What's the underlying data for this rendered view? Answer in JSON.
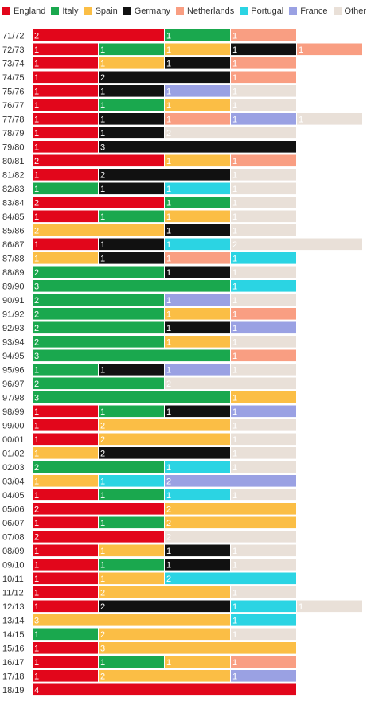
{
  "chart_data": {
    "type": "bar",
    "stacked": true,
    "title": "",
    "xlabel": "",
    "ylabel": "",
    "legend_position": "top",
    "categories": [
      "71/72",
      "72/73",
      "73/74",
      "74/75",
      "75/76",
      "76/77",
      "77/78",
      "78/79",
      "79/80",
      "80/81",
      "81/82",
      "82/83",
      "83/84",
      "84/85",
      "85/86",
      "86/87",
      "87/88",
      "88/89",
      "89/90",
      "90/91",
      "91/92",
      "92/93",
      "93/94",
      "94/95",
      "95/96",
      "96/97",
      "97/98",
      "98/99",
      "99/00",
      "00/01",
      "01/02",
      "02/03",
      "03/04",
      "04/05",
      "05/06",
      "06/07",
      "07/08",
      "08/09",
      "09/10",
      "10/11",
      "11/12",
      "12/13",
      "13/14",
      "14/15",
      "15/16",
      "16/17",
      "17/18",
      "18/19"
    ],
    "series": [
      {
        "name": "England",
        "color": "#e2061b",
        "values": [
          2,
          1,
          1,
          1,
          1,
          1,
          1,
          1,
          1,
          2,
          1,
          0,
          2,
          1,
          0,
          1,
          0,
          0,
          0,
          0,
          0,
          0,
          0,
          0,
          0,
          0,
          0,
          1,
          1,
          1,
          0,
          0,
          0,
          1,
          2,
          1,
          2,
          1,
          1,
          1,
          1,
          1,
          0,
          0,
          1,
          1,
          1,
          4
        ]
      },
      {
        "name": "Italy",
        "color": "#1aa84e",
        "values": [
          1,
          1,
          0,
          0,
          0,
          1,
          0,
          0,
          0,
          0,
          0,
          1,
          1,
          1,
          0,
          0,
          0,
          2,
          3,
          2,
          2,
          2,
          2,
          3,
          1,
          2,
          3,
          1,
          0,
          0,
          0,
          2,
          0,
          1,
          0,
          1,
          0,
          0,
          1,
          0,
          0,
          0,
          0,
          1,
          0,
          1,
          0,
          0
        ]
      },
      {
        "name": "Spain",
        "color": "#fbbe45",
        "values": [
          0,
          1,
          1,
          0,
          0,
          1,
          0,
          0,
          0,
          1,
          0,
          0,
          0,
          1,
          2,
          0,
          1,
          0,
          0,
          0,
          1,
          0,
          1,
          0,
          0,
          0,
          1,
          0,
          2,
          2,
          1,
          0,
          1,
          0,
          2,
          2,
          0,
          1,
          0,
          1,
          2,
          0,
          3,
          2,
          3,
          1,
          2,
          0
        ]
      },
      {
        "name": "Germany",
        "color": "#111111",
        "values": [
          0,
          1,
          1,
          2,
          1,
          0,
          1,
          1,
          3,
          0,
          2,
          1,
          0,
          0,
          1,
          1,
          1,
          1,
          0,
          0,
          0,
          1,
          0,
          0,
          1,
          0,
          0,
          1,
          0,
          0,
          2,
          0,
          0,
          0,
          0,
          0,
          0,
          1,
          1,
          0,
          0,
          2,
          0,
          0,
          0,
          0,
          0,
          0
        ]
      },
      {
        "name": "Netherlands",
        "color": "#f99e82",
        "values": [
          1,
          1,
          1,
          1,
          0,
          0,
          1,
          0,
          0,
          1,
          0,
          0,
          0,
          0,
          0,
          0,
          1,
          0,
          0,
          0,
          1,
          0,
          0,
          1,
          0,
          0,
          0,
          0,
          0,
          0,
          0,
          0,
          0,
          0,
          0,
          0,
          0,
          0,
          0,
          0,
          0,
          0,
          0,
          0,
          0,
          1,
          0,
          0
        ]
      },
      {
        "name": "Portugal",
        "color": "#2bd4e3",
        "values": [
          0,
          0,
          0,
          0,
          0,
          0,
          0,
          0,
          0,
          0,
          0,
          1,
          0,
          0,
          0,
          1,
          1,
          0,
          1,
          0,
          0,
          0,
          0,
          0,
          0,
          0,
          0,
          0,
          0,
          0,
          0,
          1,
          1,
          1,
          0,
          0,
          0,
          0,
          0,
          2,
          0,
          1,
          1,
          0,
          0,
          0,
          0,
          0
        ]
      },
      {
        "name": "France",
        "color": "#9aa1e3",
        "values": [
          0,
          0,
          0,
          0,
          1,
          0,
          1,
          0,
          0,
          0,
          0,
          0,
          0,
          0,
          0,
          0,
          0,
          0,
          0,
          1,
          0,
          1,
          0,
          0,
          1,
          0,
          0,
          1,
          0,
          0,
          0,
          0,
          2,
          0,
          0,
          0,
          0,
          0,
          0,
          0,
          0,
          0,
          0,
          0,
          0,
          0,
          1,
          0
        ]
      },
      {
        "name": "Other",
        "color": "#e9e0d8",
        "values": [
          0,
          0,
          0,
          0,
          1,
          1,
          1,
          2,
          0,
          0,
          1,
          1,
          1,
          1,
          1,
          2,
          0,
          1,
          0,
          1,
          0,
          0,
          1,
          0,
          1,
          2,
          0,
          0,
          1,
          1,
          1,
          1,
          0,
          1,
          0,
          0,
          2,
          1,
          1,
          0,
          1,
          1,
          0,
          1,
          0,
          0,
          0,
          0
        ]
      }
    ]
  }
}
